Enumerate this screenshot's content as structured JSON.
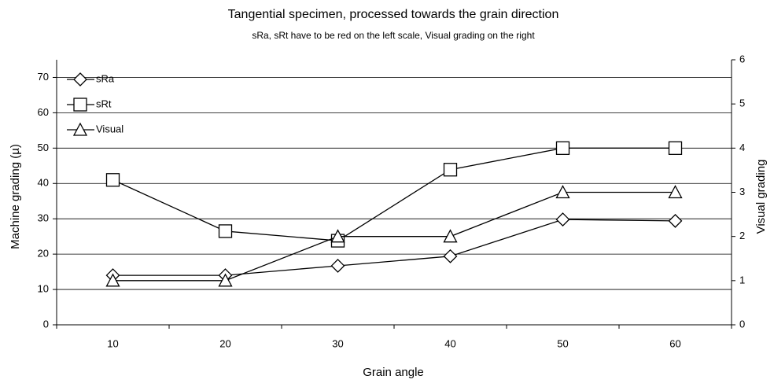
{
  "chart_data": {
    "type": "line",
    "title": "Tangential specimen, processed towards the grain direction",
    "subtitle": "sRa, sRt have to be red on the left scale, Visual grading on the right",
    "x_label": "Grain angle",
    "y_label": "Machine grading (µ)",
    "y2_label": "Visual grading",
    "categories": [
      "10",
      "20",
      "30",
      "40",
      "50",
      "60"
    ],
    "series": [
      {
        "name": "sRa",
        "color": "#000000",
        "marker": "diamond",
        "values": [
          14,
          14,
          16.7,
          19.4,
          29.8,
          29.4
        ]
      },
      {
        "name": "sRt",
        "color": "#000000",
        "marker": "square",
        "values": [
          41,
          26.5,
          23.8,
          43.9,
          50,
          50
        ]
      },
      {
        "name": "Visual",
        "color": "#000000",
        "marker": "triangle",
        "axis": "y2",
        "values": [
          1,
          1,
          2,
          2,
          3,
          3
        ]
      }
    ],
    "ylim": [
      0,
      75
    ],
    "yticks": [
      0,
      10,
      20,
      30,
      40,
      50,
      60,
      70
    ],
    "y2lim": [
      0,
      6
    ],
    "y2ticks": [
      0,
      1,
      2,
      3,
      4,
      5,
      6
    ],
    "grid": true,
    "legend": "top-left"
  }
}
